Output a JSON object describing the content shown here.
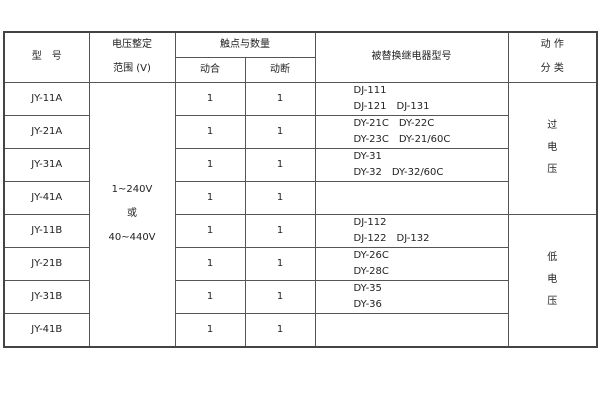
{
  "header": {
    "model": "型　号",
    "voltage_range": [
      "电压整定",
      "范围 (V)"
    ],
    "contacts": "触点与数量",
    "make": "动合",
    "break": "动断",
    "replaced": "被替换继电器型号",
    "action_type": [
      "动 作",
      "分 类"
    ]
  },
  "voltage_value": [
    "1~240V",
    "或",
    "40~440V"
  ],
  "groups": [
    {
      "label": [
        "过",
        "电",
        "压"
      ]
    },
    {
      "label": [
        "低",
        "电",
        "压"
      ]
    }
  ],
  "rows": [
    {
      "model": "JY-11A",
      "make": "1",
      "break": "1",
      "replaced": [
        "DJ-111",
        "DJ-121　DJ-131"
      ]
    },
    {
      "model": "JY-21A",
      "make": "1",
      "break": "1",
      "replaced": [
        "DY-21C　DY-22C",
        "DY-23C　DY-21/60C"
      ]
    },
    {
      "model": "JY-31A",
      "make": "1",
      "break": "1",
      "replaced": [
        "DY-31",
        "DY-32　DY-32/60C"
      ]
    },
    {
      "model": "JY-41A",
      "make": "1",
      "break": "1",
      "replaced": []
    },
    {
      "model": "JY-11B",
      "make": "1",
      "break": "1",
      "replaced": [
        "DJ-112",
        "DJ-122　DJ-132"
      ]
    },
    {
      "model": "JY-21B",
      "make": "1",
      "break": "1",
      "replaced": [
        "DY-26C",
        "DY-28C"
      ]
    },
    {
      "model": "JY-31B",
      "make": "1",
      "break": "1",
      "replaced": [
        "DY-35",
        "DY-36"
      ]
    },
    {
      "model": "JY-41B",
      "make": "1",
      "break": "1",
      "replaced": []
    }
  ]
}
